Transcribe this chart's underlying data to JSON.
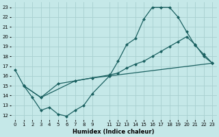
{
  "xlabel": "Humidex (Indice chaleur)",
  "bg_color": "#c5e8e8",
  "grid_color": "#a8d0d0",
  "line_color": "#1a6060",
  "xlim": [
    -0.5,
    23.5
  ],
  "ylim": [
    11.5,
    23.5
  ],
  "yticks": [
    12,
    13,
    14,
    15,
    16,
    17,
    18,
    19,
    20,
    21,
    22,
    23
  ],
  "xticks": [
    0,
    1,
    2,
    3,
    4,
    5,
    6,
    7,
    8,
    9,
    11,
    12,
    13,
    14,
    15,
    16,
    17,
    18,
    19,
    20,
    21,
    22,
    23
  ],
  "line1_x": [
    0,
    1,
    2,
    3,
    4,
    5,
    6,
    7,
    8,
    9,
    11,
    12,
    13,
    14,
    15,
    16,
    17,
    18,
    19,
    20,
    21,
    22,
    23
  ],
  "line1_y": [
    16.6,
    15.0,
    13.8,
    12.5,
    12.8,
    12.1,
    11.9,
    12.5,
    13.0,
    14.2,
    16.0,
    17.5,
    19.2,
    19.8,
    21.8,
    23.0,
    23.0,
    23.0,
    22.0,
    20.5,
    19.1,
    18.2,
    17.3
  ],
  "line2_x": [
    1,
    3,
    5,
    7,
    9,
    11,
    12,
    13,
    14,
    15,
    16,
    17,
    18,
    19,
    20,
    21,
    22,
    23
  ],
  "line2_y": [
    15.0,
    13.8,
    15.2,
    15.5,
    15.8,
    16.1,
    16.3,
    16.8,
    17.2,
    17.5,
    18.0,
    18.5,
    19.0,
    19.5,
    20.0,
    19.2,
    18.0,
    17.3
  ],
  "line3_x": [
    1,
    3,
    7,
    9,
    11,
    23
  ],
  "line3_y": [
    15.0,
    13.8,
    15.5,
    15.8,
    16.0,
    17.3
  ]
}
